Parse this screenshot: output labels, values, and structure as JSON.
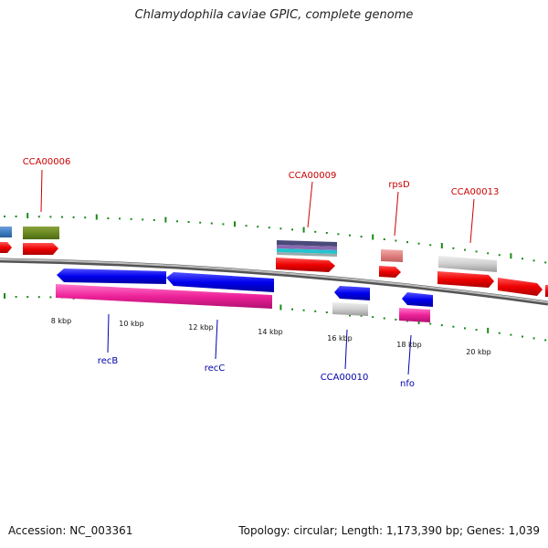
{
  "title": "Chlamydophila caviae GPIC, complete genome",
  "footer": {
    "accession": "Accession: NC_003361",
    "summary": "Topology: circular; Length: 1,173,390 bp; Genes: 1,039"
  },
  "colors": {
    "label_top": "#cc0000",
    "label_bottom": "#0000aa",
    "tick": "#1a8a1a",
    "backbone": "#7a7a7a"
  },
  "tick_labels": [
    "8 kbp",
    "10 kbp",
    "12 kbp",
    "14 kbp",
    "16 kbp",
    "18 kbp",
    "20 kbp"
  ],
  "gene_labels_top": [
    "CCA00006",
    "CCA00009",
    "rpsD",
    "CCA00013"
  ],
  "gene_labels_bottom": [
    "recB",
    "recC",
    "CCA00010",
    "nfo"
  ]
}
